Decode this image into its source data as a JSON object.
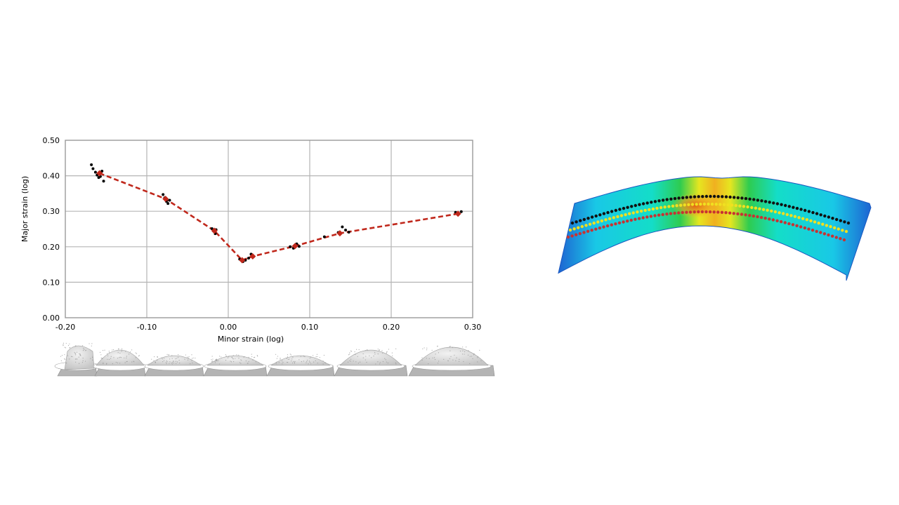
{
  "chart_data": {
    "type": "scatter",
    "title": "",
    "xlabel": "Minor strain (log)",
    "ylabel": "Major strain (log)",
    "xlim": [
      -0.2,
      0.3
    ],
    "ylim": [
      0.0,
      0.5
    ],
    "xticks": [
      "-0.20",
      "-0.10",
      "0.00",
      "0.10",
      "0.20",
      "0.30"
    ],
    "yticks": [
      "0.00",
      "0.10",
      "0.20",
      "0.30",
      "0.40",
      "0.50"
    ],
    "grid": true,
    "series": [
      {
        "style": "dashed-line-with-diamonds",
        "color": "#c0281c",
        "x": [
          -0.158,
          -0.077,
          -0.017,
          0.017,
          0.03,
          0.082,
          0.137,
          0.282
        ],
        "y": [
          0.407,
          0.335,
          0.245,
          0.162,
          0.173,
          0.202,
          0.238,
          0.293
        ]
      },
      {
        "style": "points",
        "color": "#000000",
        "x": [
          -0.168,
          -0.166,
          -0.163,
          -0.161,
          -0.159,
          -0.157,
          -0.155,
          -0.153,
          -0.08,
          -0.078,
          -0.076,
          -0.074,
          -0.072,
          -0.02,
          -0.018,
          -0.016,
          -0.015,
          0.014,
          0.018,
          0.021,
          0.025,
          0.028,
          0.031,
          0.076,
          0.08,
          0.084,
          0.087,
          0.118,
          0.135,
          0.14,
          0.144,
          0.148,
          0.279,
          0.283,
          0.286
        ],
        "y": [
          0.431,
          0.42,
          0.41,
          0.402,
          0.395,
          0.398,
          0.413,
          0.385,
          0.347,
          0.338,
          0.328,
          0.322,
          0.331,
          0.251,
          0.244,
          0.237,
          0.248,
          0.165,
          0.158,
          0.162,
          0.168,
          0.179,
          0.172,
          0.2,
          0.196,
          0.208,
          0.201,
          0.228,
          0.24,
          0.256,
          0.247,
          0.241,
          0.297,
          0.293,
          0.299
        ]
      }
    ]
  },
  "specimens": {
    "count": 7,
    "colors": {
      "base": "#b4b4b4",
      "dome": "#e8e8e8",
      "ring": "#ffffff",
      "speckle": "#8c8c8c"
    }
  },
  "strip": {
    "colormap": [
      "#1e64d2",
      "#19c8e6",
      "#14ddc8",
      "#2ecc50",
      "#e6e620",
      "#f0b020",
      "#e66414"
    ],
    "point_rows": [
      {
        "color": "#111111"
      },
      {
        "color": "#f0e020"
      },
      {
        "color": "#c83232"
      }
    ]
  }
}
